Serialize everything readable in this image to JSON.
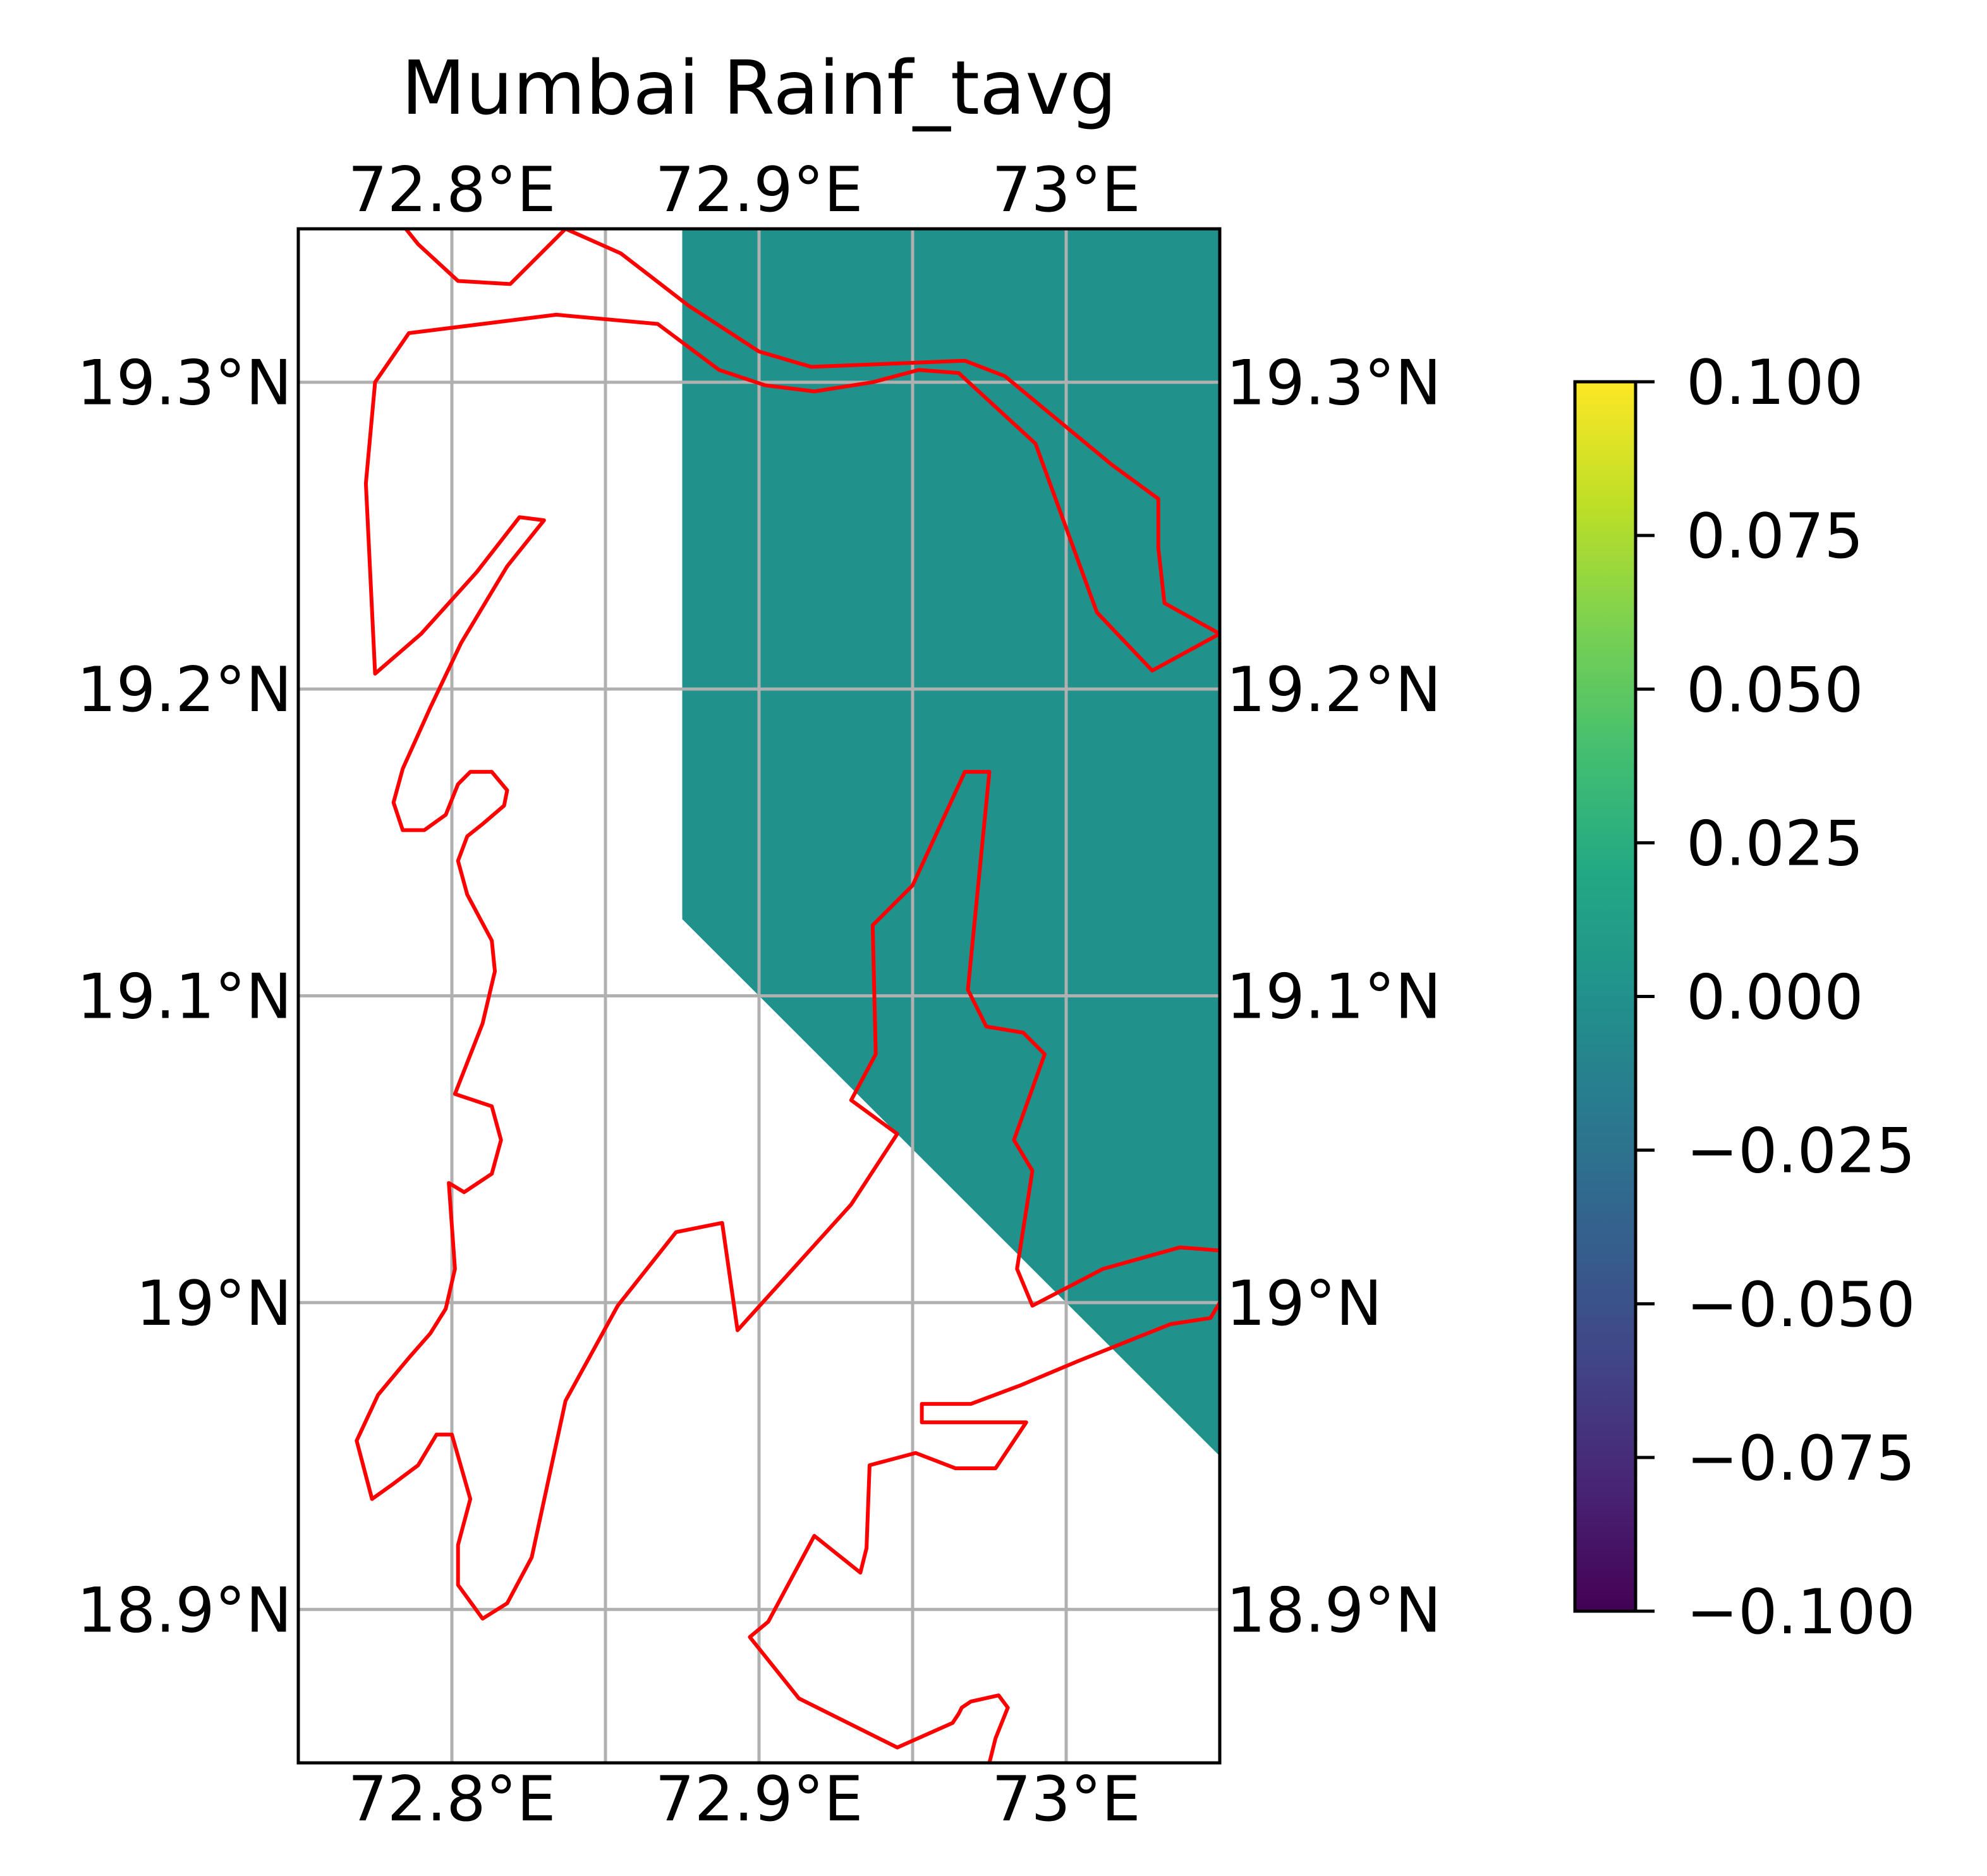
{
  "title": "Mumbai Rainf_tavg",
  "map": {
    "extent": {
      "lon": [
        72.75,
        73.05
      ],
      "lat": [
        18.85,
        19.35
      ]
    },
    "lon_ticks": [
      {
        "value": 72.8,
        "label": "72.8°E"
      },
      {
        "value": 72.9,
        "label": "72.9°E"
      },
      {
        "value": 73.0,
        "label": "73°E"
      }
    ],
    "gridline_lons": [
      72.8,
      72.85,
      72.9,
      72.95,
      73.0
    ],
    "lat_ticks": [
      {
        "value": 19.3,
        "label": "19.3°N"
      },
      {
        "value": 19.2,
        "label": "19.2°N"
      },
      {
        "value": 19.1,
        "label": "19.1°N"
      },
      {
        "value": 19.0,
        "label": "19°N"
      },
      {
        "value": 18.9,
        "label": "18.9°N"
      }
    ],
    "grid_color": "#b0b0b0",
    "coastline_color": "#ff0000",
    "field_color": "#21918c",
    "field_value": 0.0,
    "field_polygon": [
      [
        72.875,
        19.35
      ],
      [
        73.05,
        19.35
      ],
      [
        73.05,
        18.95
      ],
      [
        72.875,
        19.125
      ]
    ],
    "coastlines": [
      [
        [
          72.785,
          19.35
        ],
        [
          72.789,
          19.345
        ],
        [
          72.802,
          19.333
        ],
        [
          72.819,
          19.332
        ],
        [
          72.837,
          19.35
        ]
      ],
      [
        [
          72.837,
          19.35
        ],
        [
          72.855,
          19.342
        ],
        [
          72.877,
          19.325
        ],
        [
          72.9,
          19.31
        ],
        [
          72.917,
          19.305
        ],
        [
          72.967,
          19.307
        ],
        [
          72.98,
          19.302
        ],
        [
          73.015,
          19.273
        ],
        [
          73.03,
          19.262
        ],
        [
          73.03,
          19.246
        ],
        [
          73.032,
          19.228
        ],
        [
          73.05,
          19.218
        ]
      ],
      [
        [
          73.05,
          19.218
        ],
        [
          73.028,
          19.206
        ],
        [
          73.01,
          19.225
        ],
        [
          72.99,
          19.28
        ],
        [
          72.965,
          19.303
        ],
        [
          72.952,
          19.304
        ],
        [
          72.937,
          19.3
        ],
        [
          72.918,
          19.297
        ],
        [
          72.902,
          19.299
        ],
        [
          72.887,
          19.304
        ],
        [
          72.867,
          19.319
        ],
        [
          72.834,
          19.322
        ],
        [
          72.786,
          19.316
        ],
        [
          72.775,
          19.3
        ],
        [
          72.772,
          19.267
        ],
        [
          72.775,
          19.205
        ],
        [
          72.79,
          19.218
        ],
        [
          72.808,
          19.238
        ],
        [
          72.822,
          19.256
        ],
        [
          72.83,
          19.255
        ],
        [
          72.818,
          19.24
        ],
        [
          72.803,
          19.215
        ],
        [
          72.793,
          19.194
        ],
        [
          72.784,
          19.174
        ],
        [
          72.781,
          19.163
        ],
        [
          72.784,
          19.154
        ],
        [
          72.791,
          19.154
        ],
        [
          72.798,
          19.159
        ],
        [
          72.802,
          19.169
        ],
        [
          72.806,
          19.173
        ],
        [
          72.813,
          19.173
        ],
        [
          72.818,
          19.167
        ],
        [
          72.817,
          19.162
        ],
        [
          72.81,
          19.156
        ],
        [
          72.805,
          19.152
        ],
        [
          72.802,
          19.144
        ],
        [
          72.805,
          19.133
        ],
        [
          72.813,
          19.118
        ],
        [
          72.814,
          19.108
        ],
        [
          72.81,
          19.091
        ],
        [
          72.801,
          19.068
        ],
        [
          72.813,
          19.064
        ],
        [
          72.816,
          19.053
        ],
        [
          72.813,
          19.042
        ],
        [
          72.804,
          19.036
        ],
        [
          72.799,
          19.039
        ],
        [
          72.801,
          19.011
        ],
        [
          72.798,
          18.998
        ],
        [
          72.793,
          18.99
        ],
        [
          72.786,
          18.982
        ],
        [
          72.776,
          18.97
        ],
        [
          72.769,
          18.955
        ],
        [
          72.774,
          18.936
        ],
        [
          72.781,
          18.941
        ],
        [
          72.789,
          18.947
        ],
        [
          72.795,
          18.957
        ],
        [
          72.8,
          18.957
        ],
        [
          72.806,
          18.936
        ],
        [
          72.802,
          18.921
        ],
        [
          72.802,
          18.908
        ],
        [
          72.81,
          18.897
        ],
        [
          72.818,
          18.902
        ],
        [
          72.826,
          18.917
        ],
        [
          72.837,
          18.968
        ],
        [
          72.854,
          18.999
        ],
        [
          72.873,
          19.023
        ],
        [
          72.888,
          19.026
        ],
        [
          72.893,
          18.991
        ],
        [
          72.93,
          19.032
        ],
        [
          72.945,
          19.055
        ],
        [
          72.93,
          19.066
        ],
        [
          72.938,
          19.081
        ],
        [
          72.937,
          19.123
        ],
        [
          72.95,
          19.136
        ],
        [
          72.967,
          19.173
        ],
        [
          72.975,
          19.173
        ],
        [
          72.968,
          19.102
        ],
        [
          72.974,
          19.09
        ],
        [
          72.986,
          19.088
        ],
        [
          72.993,
          19.081
        ],
        [
          72.983,
          19.053
        ],
        [
          72.989,
          19.043
        ],
        [
          72.984,
          19.011
        ],
        [
          72.989,
          18.999
        ],
        [
          73.012,
          19.011
        ],
        [
          73.037,
          19.018
        ],
        [
          73.05,
          19.017
        ]
      ],
      [
        [
          73.05,
          19.0
        ],
        [
          73.047,
          18.995
        ],
        [
          73.034,
          18.993
        ],
        [
          73.004,
          18.981
        ],
        [
          72.985,
          18.973
        ],
        [
          72.969,
          18.967
        ],
        [
          72.953,
          18.967
        ],
        [
          72.953,
          18.961
        ],
        [
          72.987,
          18.961
        ],
        [
          72.977,
          18.946
        ],
        [
          72.964,
          18.946
        ],
        [
          72.951,
          18.951
        ],
        [
          72.936,
          18.947
        ],
        [
          72.935,
          18.92
        ],
        [
          72.933,
          18.912
        ],
        [
          72.918,
          18.924
        ],
        [
          72.903,
          18.896
        ],
        [
          72.897,
          18.891
        ],
        [
          72.913,
          18.871
        ],
        [
          72.945,
          18.855
        ],
        [
          72.963,
          18.863
        ],
        [
          72.965,
          18.866
        ],
        [
          72.966,
          18.868
        ],
        [
          72.969,
          18.87
        ],
        [
          72.978,
          18.872
        ],
        [
          72.981,
          18.868
        ],
        [
          72.977,
          18.858
        ],
        [
          72.975,
          18.85
        ]
      ]
    ]
  },
  "colorbar": {
    "cmap": "viridis",
    "vmin": -0.1,
    "vmax": 0.1,
    "ticks": [
      {
        "value": 0.1,
        "label": "0.100"
      },
      {
        "value": 0.075,
        "label": "0.075"
      },
      {
        "value": 0.05,
        "label": "0.050"
      },
      {
        "value": 0.025,
        "label": "0.025"
      },
      {
        "value": 0.0,
        "label": "0.000"
      },
      {
        "value": -0.025,
        "label": "−0.025"
      },
      {
        "value": -0.05,
        "label": "−0.050"
      },
      {
        "value": -0.075,
        "label": "−0.075"
      },
      {
        "value": -0.1,
        "label": "−0.100"
      }
    ],
    "stops": [
      "#440154",
      "#482475",
      "#414487",
      "#355f8d",
      "#2a788e",
      "#21918c",
      "#22a884",
      "#44bf70",
      "#7ad151",
      "#bddf26",
      "#fde725"
    ]
  }
}
